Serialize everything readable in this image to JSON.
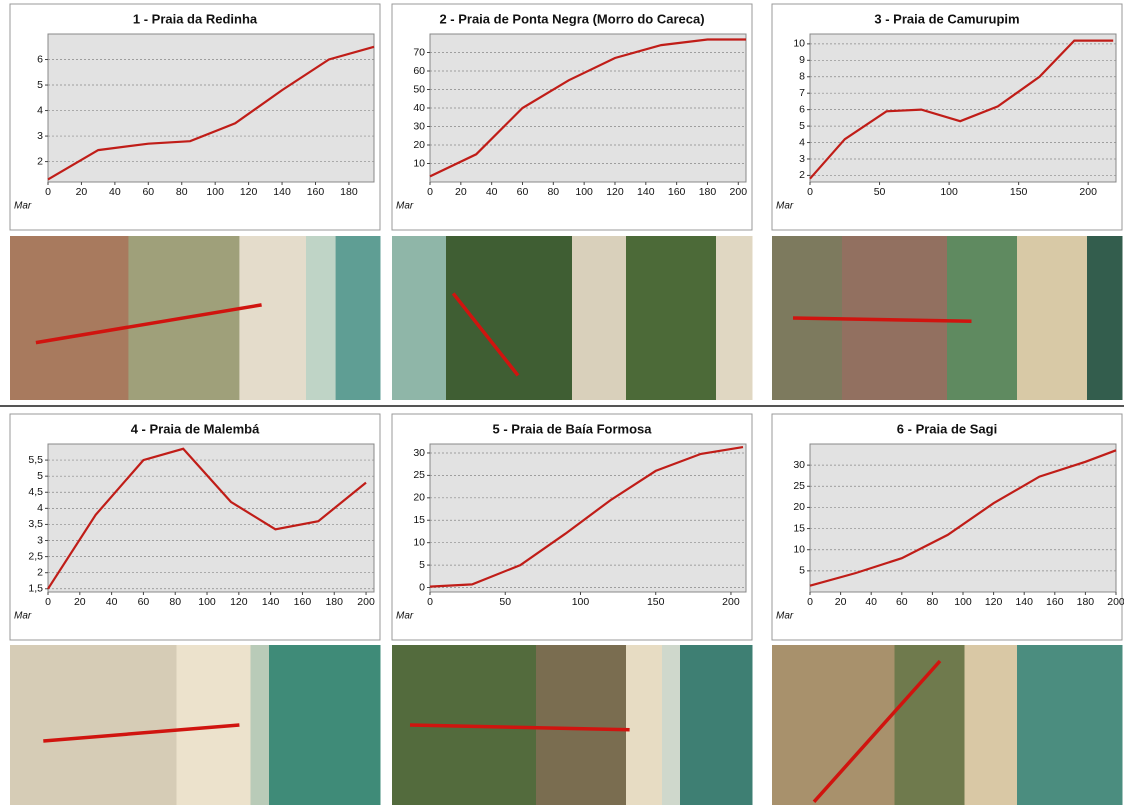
{
  "chart_data": [
    {
      "type": "line",
      "title": "1 - Praia da Redinha",
      "xlabel": "Mar",
      "color": "#c01d18",
      "grid": true,
      "x": [
        0,
        30,
        60,
        85,
        112,
        140,
        168,
        195
      ],
      "values": [
        1.3,
        2.45,
        2.7,
        2.8,
        3.5,
        4.8,
        6.0,
        6.5
      ],
      "xlim": [
        0,
        195
      ],
      "ylim": [
        1.2,
        7.0
      ],
      "xticks": [
        0,
        20,
        40,
        60,
        80,
        100,
        120,
        140,
        160,
        180
      ],
      "yticks": [
        2,
        3,
        4,
        5,
        6
      ]
    },
    {
      "type": "line",
      "title": "2 - Praia de Ponta Negra (Morro do Careca)",
      "xlabel": "Mar",
      "color": "#c01d18",
      "grid": true,
      "x": [
        0,
        30,
        60,
        90,
        120,
        150,
        180,
        205
      ],
      "values": [
        3,
        15,
        40,
        55,
        67,
        74,
        77,
        77
      ],
      "xlim": [
        0,
        205
      ],
      "ylim": [
        0,
        80
      ],
      "xticks": [
        0,
        20,
        40,
        60,
        80,
        100,
        120,
        140,
        160,
        180,
        200
      ],
      "yticks": [
        10,
        20,
        30,
        40,
        50,
        60,
        70
      ]
    },
    {
      "type": "line",
      "title": "3 - Praia de Camurupim",
      "xlabel": "Mar",
      "color": "#c01d18",
      "grid": true,
      "x": [
        0,
        25,
        55,
        80,
        108,
        135,
        165,
        190,
        218
      ],
      "values": [
        1.8,
        4.2,
        5.9,
        6.0,
        5.3,
        6.2,
        8.0,
        10.2,
        10.2
      ],
      "xlim": [
        0,
        220
      ],
      "ylim": [
        1.6,
        10.6
      ],
      "xticks": [
        0,
        50,
        100,
        150,
        200
      ],
      "yticks": [
        2,
        3,
        4,
        5,
        6,
        7,
        8,
        9,
        10
      ]
    },
    {
      "type": "line",
      "title": "4 - Praia de Malembá",
      "xlabel": "Mar",
      "color": "#c01d18",
      "grid": true,
      "x": [
        0,
        30,
        60,
        85,
        115,
        143,
        170,
        200
      ],
      "values": [
        1.5,
        3.8,
        5.5,
        5.85,
        4.2,
        3.35,
        3.6,
        4.8
      ],
      "xlim": [
        0,
        205
      ],
      "ylim": [
        1.4,
        6.0
      ],
      "xticks": [
        0,
        20,
        40,
        60,
        80,
        100,
        120,
        140,
        160,
        180,
        200
      ],
      "yticks": [
        {
          "value": 1.5,
          "label": "1,5"
        },
        2,
        {
          "value": 2.5,
          "label": "2,5"
        },
        3,
        {
          "value": 3.5,
          "label": "3,5"
        },
        4,
        {
          "value": 4.5,
          "label": "4,5"
        },
        5,
        {
          "value": 5.5,
          "label": "5,5"
        }
      ]
    },
    {
      "type": "line",
      "title": "5 - Praia de Baía Formosa",
      "xlabel": "Mar",
      "color": "#c01d18",
      "grid": true,
      "x": [
        0,
        28,
        60,
        90,
        120,
        150,
        180,
        208
      ],
      "values": [
        0.2,
        0.7,
        5,
        12,
        19.5,
        26,
        29.8,
        31.3
      ],
      "xlim": [
        0,
        210
      ],
      "ylim": [
        -1,
        32
      ],
      "xticks": [
        0,
        50,
        100,
        150,
        200
      ],
      "yticks": [
        0,
        5,
        10,
        15,
        20,
        25,
        30
      ]
    },
    {
      "type": "line",
      "title": "6 - Praia de Sagi",
      "xlabel": "Mar",
      "color": "#c01d18",
      "grid": true,
      "x": [
        0,
        30,
        60,
        90,
        120,
        150,
        180,
        200
      ],
      "values": [
        1.5,
        4.5,
        8,
        13.5,
        21,
        27.3,
        30.8,
        33.5
      ],
      "xlim": [
        0,
        200
      ],
      "ylim": [
        0,
        35
      ],
      "xticks": [
        0,
        20,
        40,
        60,
        80,
        100,
        120,
        140,
        160,
        180,
        200
      ],
      "yticks": [
        5,
        10,
        15,
        20,
        25,
        30
      ]
    }
  ]
}
